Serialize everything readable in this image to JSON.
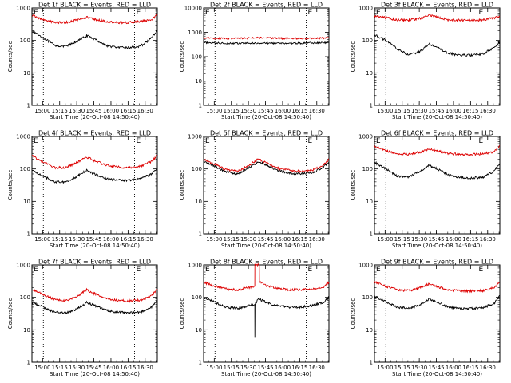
{
  "window": {
    "background": "#ffffff"
  },
  "colors": {
    "events": "#000000",
    "lld": "#dd0000",
    "dotted_lines": "#000000"
  },
  "chart_data": [
    {
      "type": "line",
      "title": "Det 1f BLACK = Events, RED = LLD",
      "marker": "E",
      "xlabel": "Start Time (20-Oct-08 14:50:40)",
      "ylabel": "Counts/sec",
      "yscale": "log",
      "ylim": [
        1,
        1000
      ],
      "y_ticks": [
        "1",
        "10",
        "100",
        "1000"
      ],
      "x_ticks": [
        "15:00",
        "15:15",
        "15:30",
        "15:45",
        "16:00",
        "16:15",
        "16:30"
      ],
      "xlim_minutes": [
        -10,
        100
      ],
      "vlines_minutes": [
        0,
        80,
        100
      ],
      "series": [
        {
          "name": "Events",
          "color": "#000000",
          "x_minutes": [
            -10,
            0,
            10,
            20,
            30,
            38,
            45,
            55,
            65,
            75,
            85,
            95,
            100
          ],
          "values": [
            200,
            120,
            70,
            65,
            95,
            140,
            110,
            70,
            60,
            60,
            65,
            120,
            200
          ]
        },
        {
          "name": "LLD",
          "color": "#dd0000",
          "x_minutes": [
            -10,
            0,
            10,
            20,
            30,
            38,
            45,
            55,
            65,
            75,
            85,
            95,
            100
          ],
          "values": [
            600,
            430,
            360,
            360,
            430,
            520,
            450,
            380,
            350,
            360,
            380,
            440,
            600
          ]
        }
      ]
    },
    {
      "type": "line",
      "title": "Det 2f BLACK = Events, RED = LLD",
      "marker": "E",
      "xlabel": "Start Time (20-Oct-08 14:50:40)",
      "ylabel": "Counts/sec",
      "yscale": "log",
      "ylim": [
        1,
        10000
      ],
      "y_ticks": [
        "1",
        "10",
        "100",
        "1000",
        "10000"
      ],
      "x_ticks": [
        "15:00",
        "15:15",
        "15:30",
        "15:45",
        "16:00",
        "16:15",
        "16:30"
      ],
      "xlim_minutes": [
        -10,
        100
      ],
      "vlines_minutes": [
        0,
        80,
        100
      ],
      "series": [
        {
          "name": "Events",
          "color": "#000000",
          "x_minutes": [
            -10,
            0,
            20,
            40,
            60,
            80,
            100
          ],
          "values": [
            380,
            360,
            350,
            360,
            350,
            360,
            380
          ]
        },
        {
          "name": "LLD",
          "color": "#dd0000",
          "x_minutes": [
            -10,
            0,
            20,
            40,
            60,
            80,
            100
          ],
          "values": [
            600,
            560,
            560,
            600,
            560,
            560,
            600
          ]
        }
      ]
    },
    {
      "type": "line",
      "title": "Det 3f BLACK = Events, RED = LLD",
      "marker": "E",
      "xlabel": "Start Time (20-Oct-08 14:50:40)",
      "ylabel": "Counts/sec",
      "yscale": "log",
      "ylim": [
        1,
        1000
      ],
      "y_ticks": [
        "1",
        "10",
        "100",
        "1000"
      ],
      "x_ticks": [
        "15:00",
        "15:15",
        "15:30",
        "15:45",
        "16:00",
        "16:15",
        "16:30"
      ],
      "xlim_minutes": [
        -10,
        100
      ],
      "vlines_minutes": [
        0,
        80,
        100
      ],
      "series": [
        {
          "name": "Events",
          "color": "#000000",
          "x_minutes": [
            -10,
            0,
            10,
            20,
            30,
            38,
            45,
            55,
            65,
            75,
            85,
            95,
            100
          ],
          "values": [
            150,
            100,
            55,
            35,
            45,
            80,
            60,
            40,
            35,
            35,
            38,
            60,
            90
          ]
        },
        {
          "name": "LLD",
          "color": "#dd0000",
          "x_minutes": [
            -10,
            0,
            10,
            20,
            30,
            38,
            45,
            55,
            65,
            75,
            85,
            95,
            100
          ],
          "values": [
            560,
            500,
            430,
            420,
            480,
            600,
            520,
            430,
            420,
            420,
            430,
            500,
            560
          ]
        }
      ]
    },
    {
      "type": "line",
      "title": "Det 4f BLACK = Events, RED = LLD",
      "marker": "E",
      "xlabel": "Start Time (20-Oct-08 14:50:40)",
      "ylabel": "Counts/sec",
      "yscale": "log",
      "ylim": [
        1,
        1000
      ],
      "y_ticks": [
        "1",
        "10",
        "100",
        "1000"
      ],
      "x_ticks": [
        "15:00",
        "15:15",
        "15:30",
        "15:45",
        "16:00",
        "16:15",
        "16:30"
      ],
      "xlim_minutes": [
        -10,
        100
      ],
      "vlines_minutes": [
        0,
        80,
        100
      ],
      "series": [
        {
          "name": "Events",
          "color": "#000000",
          "x_minutes": [
            -10,
            0,
            10,
            20,
            30,
            38,
            45,
            55,
            65,
            75,
            85,
            95,
            100
          ],
          "values": [
            90,
            60,
            40,
            40,
            60,
            90,
            70,
            50,
            45,
            45,
            50,
            70,
            100
          ]
        },
        {
          "name": "LLD",
          "color": "#dd0000",
          "x_minutes": [
            -10,
            0,
            10,
            20,
            30,
            38,
            45,
            55,
            65,
            75,
            85,
            95,
            100
          ],
          "values": [
            260,
            160,
            110,
            110,
            160,
            230,
            180,
            130,
            115,
            110,
            120,
            170,
            260
          ]
        }
      ]
    },
    {
      "type": "line",
      "title": "Det 5f BLACK = Events, RED = LLD",
      "marker": "E",
      "xlabel": "Start Time (20-Oct-08 14:50:40)",
      "ylabel": "Counts/sec",
      "yscale": "log",
      "ylim": [
        1,
        1000
      ],
      "y_ticks": [
        "1",
        "10",
        "100",
        "1000"
      ],
      "x_ticks": [
        "15:00",
        "15:15",
        "15:30",
        "15:45",
        "16:00",
        "16:15",
        "16:30"
      ],
      "xlim_minutes": [
        -10,
        100
      ],
      "vlines_minutes": [
        0,
        80,
        100
      ],
      "series": [
        {
          "name": "Events",
          "color": "#000000",
          "x_minutes": [
            -10,
            0,
            10,
            20,
            30,
            38,
            45,
            55,
            65,
            75,
            85,
            95,
            100
          ],
          "values": [
            170,
            120,
            80,
            70,
            110,
            170,
            130,
            90,
            75,
            70,
            75,
            110,
            170
          ]
        },
        {
          "name": "LLD",
          "color": "#dd0000",
          "x_minutes": [
            -10,
            0,
            10,
            20,
            30,
            38,
            45,
            55,
            65,
            75,
            85,
            95,
            100
          ],
          "values": [
            200,
            140,
            95,
            85,
            130,
            200,
            155,
            105,
            90,
            85,
            90,
            130,
            200
          ]
        }
      ]
    },
    {
      "type": "line",
      "title": "Det 6f BLACK = Events, RED = LLD",
      "marker": "E",
      "xlabel": "Start Time (20-Oct-08 14:50:40)",
      "ylabel": "Counts/sec",
      "yscale": "log",
      "ylim": [
        1,
        1000
      ],
      "y_ticks": [
        "1",
        "10",
        "100",
        "1000"
      ],
      "x_ticks": [
        "15:00",
        "15:15",
        "15:30",
        "15:45",
        "16:00",
        "16:15",
        "16:30"
      ],
      "xlim_minutes": [
        -10,
        100
      ],
      "vlines_minutes": [
        0,
        80,
        100
      ],
      "series": [
        {
          "name": "Events",
          "color": "#000000",
          "x_minutes": [
            -10,
            0,
            10,
            20,
            30,
            38,
            45,
            55,
            65,
            75,
            85,
            95,
            100
          ],
          "values": [
            160,
            100,
            60,
            55,
            85,
            130,
            100,
            65,
            55,
            52,
            55,
            85,
            150
          ]
        },
        {
          "name": "LLD",
          "color": "#dd0000",
          "x_minutes": [
            -10,
            0,
            10,
            20,
            30,
            38,
            45,
            55,
            65,
            75,
            85,
            95,
            100
          ],
          "values": [
            500,
            360,
            290,
            280,
            330,
            420,
            360,
            300,
            280,
            280,
            290,
            340,
            500
          ]
        }
      ]
    },
    {
      "type": "line",
      "title": "Det 7f BLACK = Events, RED = LLD",
      "marker": "E",
      "xlabel": "Start Time (20-Oct-08 14:50:40)",
      "ylabel": "Counts/sec",
      "yscale": "log",
      "ylim": [
        1,
        1000
      ],
      "y_ticks": [
        "1",
        "10",
        "100",
        "1000"
      ],
      "x_ticks": [
        "15:00",
        "15:15",
        "15:30",
        "15:45",
        "16:00",
        "16:15",
        "16:30"
      ],
      "xlim_minutes": [
        -10,
        100
      ],
      "vlines_minutes": [
        0,
        80,
        100
      ],
      "series": [
        {
          "name": "Events",
          "color": "#000000",
          "x_minutes": [
            -10,
            0,
            10,
            20,
            30,
            38,
            45,
            55,
            65,
            75,
            85,
            95,
            100
          ],
          "values": [
            70,
            50,
            35,
            33,
            45,
            70,
            55,
            40,
            35,
            33,
            35,
            50,
            80
          ]
        },
        {
          "name": "LLD",
          "color": "#dd0000",
          "x_minutes": [
            -10,
            0,
            10,
            20,
            30,
            38,
            45,
            55,
            65,
            75,
            85,
            95,
            100
          ],
          "values": [
            180,
            120,
            85,
            80,
            110,
            170,
            130,
            90,
            80,
            78,
            82,
            110,
            180
          ]
        }
      ]
    },
    {
      "type": "line",
      "title": "Det 8f BLACK = Events, RED = LLD",
      "marker": "E",
      "xlabel": "Start Time (20-Oct-08 14:50:40)",
      "ylabel": "Counts/sec",
      "yscale": "log",
      "ylim": [
        1,
        1000
      ],
      "y_ticks": [
        "1",
        "10",
        "100",
        "1000"
      ],
      "x_ticks": [
        "15:00",
        "15:15",
        "15:30",
        "15:45",
        "16:00",
        "16:15",
        "16:30"
      ],
      "xlim_minutes": [
        -10,
        100
      ],
      "vlines_minutes": [
        0,
        80,
        100
      ],
      "series": [
        {
          "name": "Events",
          "color": "#000000",
          "x_minutes": [
            -10,
            0,
            10,
            20,
            30,
            34.9,
            35,
            35.1,
            38,
            45,
            55,
            65,
            75,
            85,
            95,
            100
          ],
          "values": [
            100,
            70,
            50,
            45,
            55,
            60,
            6,
            60,
            90,
            70,
            55,
            50,
            50,
            55,
            70,
            100
          ]
        },
        {
          "name": "LLD",
          "color": "#dd0000",
          "x_minutes": [
            -10,
            0,
            10,
            20,
            30,
            34.9,
            35,
            38.9,
            39,
            45,
            55,
            65,
            75,
            85,
            95,
            100
          ],
          "values": [
            290,
            220,
            180,
            170,
            200,
            220,
            1000,
            1000,
            300,
            230,
            190,
            170,
            170,
            180,
            210,
            290
          ]
        }
      ]
    },
    {
      "type": "line",
      "title": "Det 9f BLACK = Events, RED = LLD",
      "marker": "E",
      "xlabel": "Start Time (20-Oct-08 14:50:40)",
      "ylabel": "Counts/sec",
      "yscale": "log",
      "ylim": [
        1,
        1000
      ],
      "y_ticks": [
        "1",
        "10",
        "100",
        "1000"
      ],
      "x_ticks": [
        "15:00",
        "15:15",
        "15:30",
        "15:45",
        "16:00",
        "16:15",
        "16:30"
      ],
      "xlim_minutes": [
        -10,
        100
      ],
      "vlines_minutes": [
        0,
        80,
        100
      ],
      "series": [
        {
          "name": "Events",
          "color": "#000000",
          "x_minutes": [
            -10,
            0,
            10,
            20,
            30,
            38,
            45,
            55,
            65,
            75,
            85,
            95,
            100
          ],
          "values": [
            110,
            75,
            50,
            45,
            60,
            90,
            70,
            50,
            45,
            45,
            48,
            65,
            110
          ]
        },
        {
          "name": "LLD",
          "color": "#dd0000",
          "x_minutes": [
            -10,
            0,
            10,
            20,
            30,
            38,
            45,
            55,
            65,
            75,
            85,
            95,
            100
          ],
          "values": [
            300,
            220,
            170,
            160,
            200,
            260,
            210,
            170,
            160,
            155,
            160,
            200,
            300
          ]
        }
      ]
    }
  ]
}
